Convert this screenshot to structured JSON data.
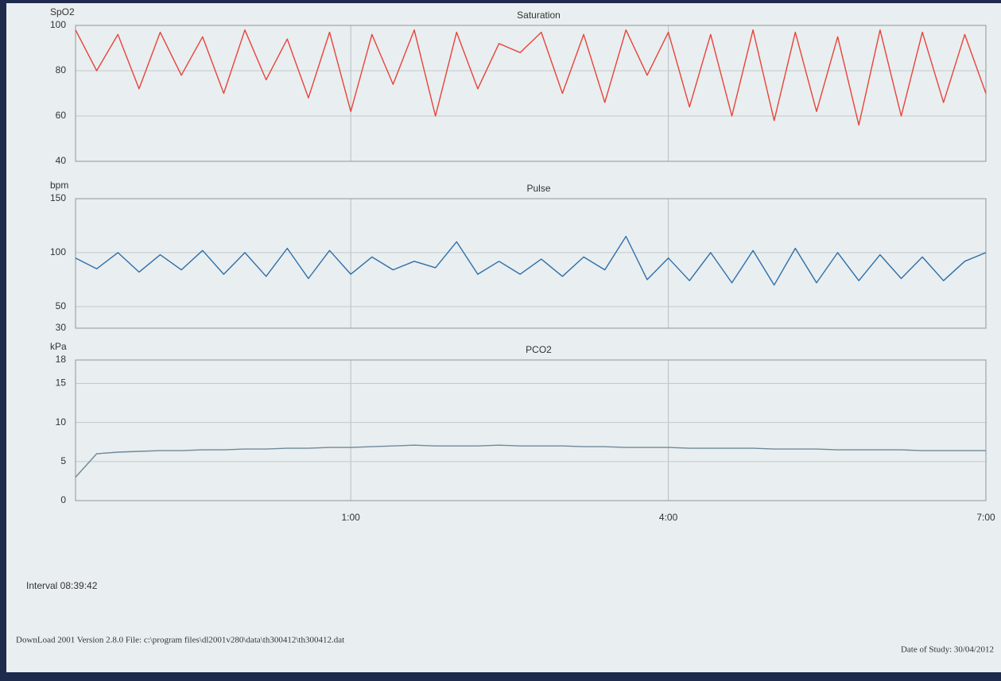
{
  "chart_data": [
    {
      "type": "line",
      "title": "Saturation",
      "y_label": "SpO2",
      "color": "#e8433a",
      "x": [
        22.4,
        22.6,
        22.8,
        23,
        23.2,
        23.4,
        23.6,
        23.8,
        24,
        24.2,
        24.4,
        24.6,
        24.8,
        25,
        25.2,
        25.4,
        25.6,
        25.8,
        26,
        26.2,
        26.4,
        26.6,
        26.8,
        27,
        27.2,
        27.4,
        27.6,
        27.8,
        28,
        28.2,
        28.4,
        28.6,
        28.8,
        29,
        29.2,
        29.4,
        29.6,
        29.8,
        30,
        30.2,
        30.4,
        30.6,
        30.8,
        31
      ],
      "values": [
        98,
        80,
        96,
        72,
        97,
        78,
        95,
        70,
        98,
        76,
        94,
        68,
        97,
        62,
        96,
        74,
        98,
        60,
        97,
        72,
        92,
        88,
        97,
        70,
        96,
        66,
        98,
        78,
        97,
        64,
        96,
        60,
        98,
        58,
        97,
        62,
        95,
        56,
        98,
        60,
        97,
        66,
        96,
        70
      ],
      "xlim": [
        22.4,
        31
      ],
      "ylim": [
        40,
        100
      ],
      "yticks": [
        40,
        60,
        80,
        100
      ],
      "grid": true
    },
    {
      "type": "line",
      "title": "Pulse",
      "y_label": "bpm",
      "color": "#2f6fa8",
      "x": [
        22.4,
        22.6,
        22.8,
        23,
        23.2,
        23.4,
        23.6,
        23.8,
        24,
        24.2,
        24.4,
        24.6,
        24.8,
        25,
        25.2,
        25.4,
        25.6,
        25.8,
        26,
        26.2,
        26.4,
        26.6,
        26.8,
        27,
        27.2,
        27.4,
        27.6,
        27.8,
        28,
        28.2,
        28.4,
        28.6,
        28.8,
        29,
        29.2,
        29.4,
        29.6,
        29.8,
        30,
        30.2,
        30.4,
        30.6,
        30.8,
        31
      ],
      "values": [
        95,
        85,
        100,
        82,
        98,
        84,
        102,
        80,
        100,
        78,
        104,
        76,
        102,
        80,
        96,
        84,
        92,
        86,
        110,
        80,
        92,
        80,
        94,
        78,
        96,
        84,
        115,
        75,
        95,
        74,
        100,
        72,
        102,
        70,
        104,
        72,
        100,
        74,
        98,
        76,
        96,
        74,
        92,
        100
      ],
      "xlim": [
        22.4,
        31
      ],
      "ylim": [
        30,
        150
      ],
      "yticks": [
        30,
        50,
        100,
        150
      ],
      "grid": true
    },
    {
      "type": "line",
      "title": "PCO2",
      "y_label": "kPa",
      "color": "#6f8a99",
      "x": [
        22.4,
        22.6,
        22.8,
        23,
        23.2,
        23.4,
        23.6,
        23.8,
        24,
        24.2,
        24.4,
        24.6,
        24.8,
        25,
        25.2,
        25.4,
        25.6,
        25.8,
        26,
        26.2,
        26.4,
        26.6,
        26.8,
        27,
        27.2,
        27.4,
        27.6,
        27.8,
        28,
        28.2,
        28.4,
        28.6,
        28.8,
        29,
        29.2,
        29.4,
        29.6,
        29.8,
        30,
        30.2,
        30.4,
        30.6,
        30.8,
        31
      ],
      "values": [
        3,
        6,
        6.2,
        6.3,
        6.4,
        6.4,
        6.5,
        6.5,
        6.6,
        6.6,
        6.7,
        6.7,
        6.8,
        6.8,
        6.9,
        7,
        7.1,
        7,
        7,
        7,
        7.1,
        7,
        7,
        7,
        6.9,
        6.9,
        6.8,
        6.8,
        6.8,
        6.7,
        6.7,
        6.7,
        6.7,
        6.6,
        6.6,
        6.6,
        6.5,
        6.5,
        6.5,
        6.5,
        6.4,
        6.4,
        6.4,
        6.4
      ],
      "xlim": [
        22.4,
        31
      ],
      "xticks": [
        {
          "value": 25,
          "label": "1:00"
        },
        {
          "value": 28,
          "label": "4:00"
        },
        {
          "value": 31,
          "label": "7:00"
        }
      ],
      "ylim": [
        0,
        18
      ],
      "yticks": [
        0,
        5,
        10,
        15,
        18
      ],
      "grid": true
    }
  ],
  "footer": {
    "interval": "Interval 08:39:42",
    "software": "DownLoad 2001 Version 2.8.0  File: c:\\program files\\dl2001v280\\data\\th300412\\th300412.dat",
    "date": "Date of Study: 30/04/2012"
  }
}
